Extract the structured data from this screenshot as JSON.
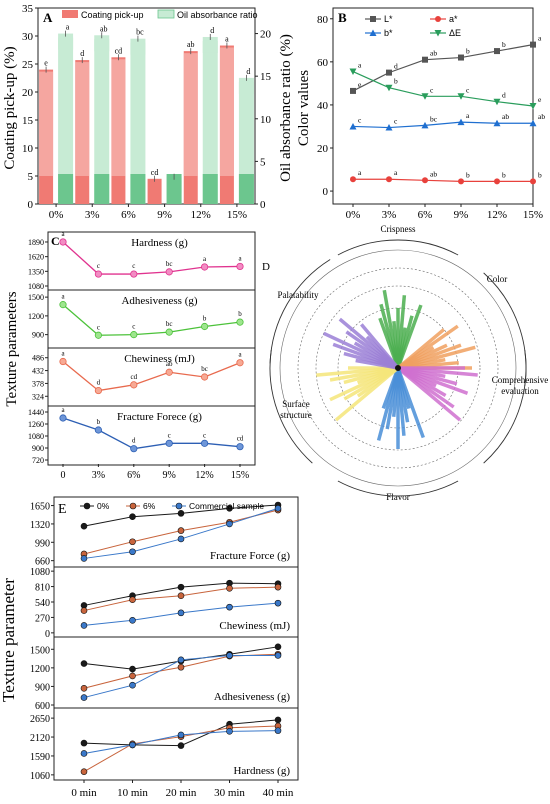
{
  "panel_a": {
    "letter": "A",
    "legend": [
      "Coating pick-up",
      "Oil absorbance ratio"
    ],
    "colors": {
      "pickup": "#f07a73",
      "pickup_light": "#f6b9b4",
      "oil": "#6cc68e",
      "oil_light": "#c7ebd4"
    },
    "ylabel_left": "Coating pick-up (%)",
    "ylabel_right": "Oil absorbance ratio (%)",
    "left_ticks": [
      "0",
      "5",
      "10",
      "15",
      "20",
      "25",
      "30",
      "35"
    ],
    "right_ticks": [
      "0",
      "5",
      "10",
      "15",
      "20"
    ],
    "categories": [
      "0%",
      "3%",
      "6%",
      "9%",
      "12%",
      "15%"
    ],
    "pickup_letters": [
      "e",
      "d",
      "cd",
      "cd",
      "ab",
      "a"
    ],
    "oil_letters": [
      "a",
      "ab",
      "bc",
      "",
      "d",
      "d"
    ]
  },
  "panel_b": {
    "letter": "B",
    "ylabel": "Color values",
    "ticks": [
      "0",
      "20",
      "40",
      "60",
      "80"
    ],
    "categories": [
      "0%",
      "3%",
      "6%",
      "9%",
      "12%",
      "15%"
    ],
    "legend": [
      "L*",
      "a*",
      "b*",
      "ΔE"
    ],
    "colors": {
      "L": "#555555",
      "a": "#e8413c",
      "b": "#1f6fd0",
      "dE": "#2a9d5c"
    },
    "L_letters": [
      "e",
      "d",
      "ab",
      "b",
      "b",
      "a"
    ],
    "a_letters": [
      "a",
      "a",
      "ab",
      "b",
      "b",
      "b"
    ],
    "b_letters": [
      "c",
      "c",
      "bc",
      "a",
      "ab",
      "ab"
    ],
    "dE_letters": [
      "a",
      "b",
      "c",
      "c",
      "d",
      "e"
    ]
  },
  "panel_c": {
    "letter": "C",
    "ylabel": "Texture parameters",
    "categories": [
      "0",
      "3%",
      "6%",
      "9%",
      "12%",
      "15%"
    ],
    "subpanels": [
      {
        "title": "Hardness (g)",
        "ticks": [
          "1080",
          "1350",
          "1620",
          "1890"
        ],
        "letters": [
          "a",
          "c",
          "c",
          "bc",
          "a",
          "a"
        ]
      },
      {
        "title": "Adhesiveness (g)",
        "ticks": [
          "900",
          "1200",
          "1500"
        ],
        "letters": [
          "a",
          "c",
          "c",
          "bc",
          "b",
          "b"
        ]
      },
      {
        "title": "Chewiness (mJ)",
        "ticks": [
          "324",
          "378",
          "432",
          "486"
        ],
        "letters": [
          "a",
          "d",
          "cd",
          "ab",
          "bc",
          "a"
        ]
      },
      {
        "title": "Fracture Forece (g)",
        "ticks": [
          "720",
          "900",
          "1080",
          "1260",
          "1440"
        ],
        "letters": [
          "a",
          "b",
          "d",
          "c",
          "c",
          "cd"
        ]
      }
    ]
  },
  "panel_d": {
    "letter": "D",
    "sectors": [
      "Crispness",
      "Color",
      "Comprehensive evaluation",
      "Flavor",
      "Surface structure",
      "Palatability"
    ]
  },
  "panel_e": {
    "letter": "E",
    "ylabel": "Texture parameter",
    "legend": [
      "0%",
      "6%",
      "Commercial sample"
    ],
    "colors": {
      "s0": "#1a1a1a",
      "s6": "#c8643c",
      "sc": "#3a78c9"
    },
    "categories": [
      "0 min",
      "10 min",
      "20 min",
      "30 min",
      "40 min"
    ],
    "subpanels": [
      {
        "title": "Fracture Force (g)",
        "ticks": [
          "660",
          "990",
          "1320",
          "1650"
        ]
      },
      {
        "title": "Chewiness (mJ)",
        "ticks": [
          "0",
          "270",
          "540",
          "810",
          "1080"
        ]
      },
      {
        "title": "Adhesiveness (g)",
        "ticks": [
          "600",
          "900",
          "1200",
          "1500"
        ]
      },
      {
        "title": "Hardness (g)",
        "ticks": [
          "1060",
          "1590",
          "2120",
          "2650"
        ]
      }
    ]
  },
  "chart_data": [
    {
      "type": "bar",
      "panel": "A",
      "categories": [
        "0%",
        "3%",
        "6%",
        "9%",
        "12%",
        "15%"
      ],
      "series": [
        {
          "name": "Coating pick-up",
          "axis": "left",
          "values": [
            24.0,
            25.7,
            26.2,
            4.5,
            27.3,
            28.3
          ]
        },
        {
          "name": "Oil absorbance ratio",
          "axis": "right",
          "values": [
            20.0,
            19.8,
            19.4,
            3.2,
            19.6,
            14.8
          ]
        }
      ],
      "ylabel": "Coating pick-up (%)",
      "y2label": "Oil absorbance ratio (%)",
      "ylim": [
        0,
        35
      ],
      "y2lim": [
        0,
        23
      ]
    },
    {
      "type": "line",
      "panel": "B",
      "categories": [
        "0%",
        "3%",
        "6%",
        "9%",
        "12%",
        "15%"
      ],
      "series": [
        {
          "name": "L*",
          "values": [
            46.5,
            55.0,
            61.0,
            62.0,
            65.0,
            68.0
          ]
        },
        {
          "name": "a*",
          "values": [
            5.5,
            5.5,
            5.0,
            4.5,
            4.5,
            4.5
          ]
        },
        {
          "name": "b*",
          "values": [
            30.0,
            29.5,
            30.5,
            32.0,
            31.5,
            31.5
          ]
        },
        {
          "name": "ΔE",
          "values": [
            55.5,
            48.0,
            44.0,
            44.0,
            41.5,
            39.5
          ]
        }
      ],
      "ylabel": "Color values",
      "ylim": [
        -6,
        85
      ]
    },
    {
      "type": "line",
      "panel": "C",
      "categories": [
        "0",
        "3%",
        "6%",
        "9%",
        "12%",
        "15%"
      ],
      "series": [
        {
          "name": "Hardness (g)",
          "values": [
            1890,
            1300,
            1300,
            1340,
            1430,
            1440
          ],
          "ylim": [
            1080,
            2000
          ]
        },
        {
          "name": "Adhesiveness (g)",
          "values": [
            1380,
            890,
            900,
            940,
            1030,
            1100
          ],
          "ylim": [
            750,
            1550
          ]
        },
        {
          "name": "Chewiness (mJ)",
          "values": [
            470,
            348,
            372,
            425,
            405,
            465
          ],
          "ylim": [
            300,
            510
          ]
        },
        {
          "name": "Fracture Forece (g)",
          "values": [
            1350,
            1170,
            890,
            970,
            970,
            920
          ],
          "ylim": [
            720,
            1470
          ]
        }
      ]
    },
    {
      "type": "line",
      "panel": "E",
      "categories": [
        "0 min",
        "10 min",
        "20 min",
        "30 min",
        "40 min"
      ],
      "subcharts": [
        {
          "name": "Fracture Force (g)",
          "ylim": [
            600,
            1750
          ],
          "series": [
            {
              "name": "0%",
              "values": [
                1280,
                1450,
                1510,
                1600,
                1660
              ]
            },
            {
              "name": "6%",
              "values": [
                780,
                1000,
                1200,
                1350,
                1570
              ]
            },
            {
              "name": "Commercial sample",
              "values": [
                700,
                820,
                1050,
                1320,
                1600
              ]
            }
          ]
        },
        {
          "name": "Chewiness (mJ)",
          "ylim": [
            -20,
            1100
          ],
          "series": [
            {
              "name": "0%",
              "values": [
                480,
                650,
                800,
                870,
                860
              ]
            },
            {
              "name": "6%",
              "values": [
                390,
                580,
                650,
                780,
                800
              ]
            },
            {
              "name": "Commercial sample",
              "values": [
                130,
                220,
                350,
                450,
                520
              ]
            }
          ]
        },
        {
          "name": "Adhesiveness (g)",
          "ylim": [
            600,
            1650
          ],
          "series": [
            {
              "name": "0%",
              "values": [
                1270,
                1180,
                1310,
                1420,
                1540
              ]
            },
            {
              "name": "6%",
              "values": [
                870,
                1070,
                1210,
                1390,
                1420
              ]
            },
            {
              "name": "Commercial sample",
              "values": [
                720,
                920,
                1330,
                1400,
                1400
              ]
            }
          ]
        },
        {
          "name": "Hardness (g)",
          "ylim": [
            1000,
            2850
          ],
          "series": [
            {
              "name": "0%",
              "values": [
                1950,
                1900,
                1880,
                2480,
                2600
              ]
            },
            {
              "name": "6%",
              "values": [
                1150,
                1930,
                2130,
                2380,
                2430
              ]
            },
            {
              "name": "Commercial sample",
              "values": [
                1660,
                1900,
                2180,
                2280,
                2300
              ]
            }
          ]
        }
      ],
      "ylabel": "Texture parameter"
    }
  ]
}
